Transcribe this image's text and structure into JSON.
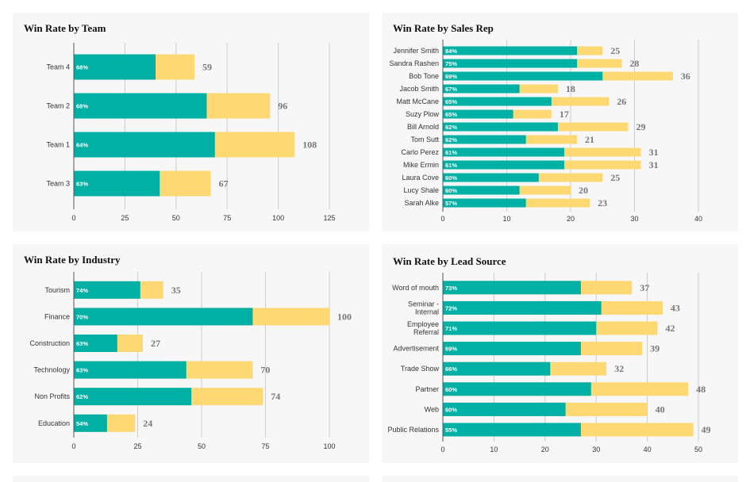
{
  "colors": {
    "won": "#00b0a5",
    "total": "#fed873",
    "grid": "#cccccc",
    "axis": "#555555",
    "panel": "#f7f7f7"
  },
  "chart_data": [
    {
      "id": "team",
      "type": "bar",
      "orientation": "horizontal",
      "stacked": true,
      "title": "Win Rate by Team",
      "categories": [
        "Team 4",
        "Team 2",
        "Team 1",
        "Team 3"
      ],
      "won": [
        40,
        65,
        69,
        42
      ],
      "totals": [
        59,
        96,
        108,
        67
      ],
      "win_rate_labels": [
        "68%",
        "68%",
        "64%",
        "63%"
      ],
      "xlim": [
        0,
        125
      ],
      "xticks": [
        0,
        25,
        50,
        75,
        100,
        125
      ],
      "grid": true
    },
    {
      "id": "rep",
      "type": "bar",
      "orientation": "horizontal",
      "stacked": true,
      "title": "Win Rate by Sales Rep",
      "categories": [
        "Jennifer Smith",
        "Sandra Rashen",
        "Bob Tone",
        "Jacob Smith",
        "Matt McCane",
        "Suzy Plow",
        "Bill Arnold",
        "Tom Sutt",
        "Carlo Perez",
        "Mike Ermin",
        "Laura Cove",
        "Lucy Shale",
        "Sarah Alke"
      ],
      "won": [
        21,
        21,
        25,
        12,
        17,
        11,
        18,
        13,
        19,
        19,
        15,
        12,
        13
      ],
      "totals": [
        25,
        28,
        36,
        18,
        26,
        17,
        29,
        21,
        31,
        31,
        25,
        20,
        23
      ],
      "win_rate_labels": [
        "84%",
        "75%",
        "69%",
        "67%",
        "65%",
        "65%",
        "62%",
        "62%",
        "61%",
        "61%",
        "60%",
        "60%",
        "57%"
      ],
      "xlim": [
        0,
        40
      ],
      "xticks": [
        0,
        10,
        20,
        30,
        40
      ],
      "grid": true
    },
    {
      "id": "industry",
      "type": "bar",
      "orientation": "horizontal",
      "stacked": true,
      "title": "Win Rate by Industry",
      "categories": [
        "Tourism",
        "Finance",
        "Construction",
        "Technology",
        "Non Profits",
        "Education"
      ],
      "won": [
        26,
        70,
        17,
        44,
        46,
        13
      ],
      "totals": [
        35,
        100,
        27,
        70,
        74,
        24
      ],
      "win_rate_labels": [
        "74%",
        "70%",
        "63%",
        "63%",
        "62%",
        "54%"
      ],
      "xlim": [
        0,
        100
      ],
      "xticks": [
        0,
        25,
        50,
        75,
        100
      ],
      "grid": true
    },
    {
      "id": "lead",
      "type": "bar",
      "orientation": "horizontal",
      "stacked": true,
      "title": "Win Rate by Lead Source",
      "categories": [
        [
          "Word of mouth"
        ],
        [
          "Seminar -",
          "Internal"
        ],
        [
          "Employee",
          "Referral"
        ],
        [
          "Advertisement"
        ],
        [
          "Trade Show"
        ],
        [
          "Partner"
        ],
        [
          "Web"
        ],
        [
          "Public Relations"
        ]
      ],
      "won": [
        27,
        31,
        30,
        27,
        21,
        29,
        24,
        27
      ],
      "totals": [
        37,
        43,
        42,
        39,
        32,
        48,
        40,
        49
      ],
      "win_rate_labels": [
        "73%",
        "72%",
        "71%",
        "69%",
        "66%",
        "60%",
        "60%",
        "55%"
      ],
      "xlim": [
        0,
        50
      ],
      "xticks": [
        0,
        10,
        20,
        30,
        40,
        50
      ],
      "grid": true
    }
  ]
}
